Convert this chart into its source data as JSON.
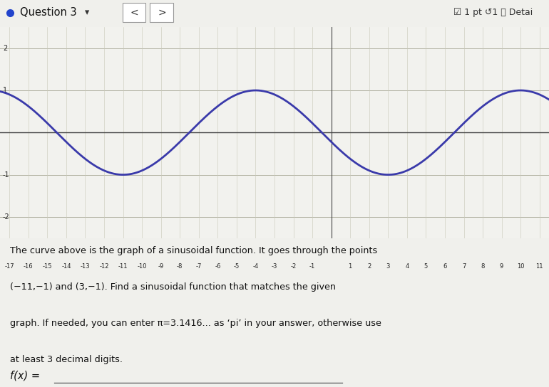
{
  "xlim": [
    -17.5,
    11.5
  ],
  "ylim": [
    -2.5,
    2.5
  ],
  "xticks": [
    -17,
    -16,
    -15,
    -14,
    -13,
    -12,
    -11,
    -10,
    -9,
    -8,
    -7,
    -6,
    -5,
    -4,
    -3,
    -2,
    -1,
    1,
    2,
    3,
    4,
    5,
    6,
    7,
    8,
    9,
    10,
    11
  ],
  "yticks_labeled": [
    -2,
    -1,
    1,
    2
  ],
  "amplitude": 1,
  "period": 14,
  "curve_color": "#3a3aaa",
  "bg_color": "#f2f2ee",
  "grid_color": "#c8c8b8",
  "grid_color_h": "#b0b0a0",
  "axis_color": "#444444",
  "header_bg": "#dcdcdc",
  "header_text": "Question 3",
  "right_header_text": "☑ 1 pt ↺1 ⓘ Detai",
  "body_text_lines": [
    "The curve above is the graph of a sinusoidal function. It goes through the points",
    "(−11,−1) and (3,−1). Find a sinusoidal function that matches the given",
    "graph. If needed, you can enter π=3.1416... as ‘pi’ in your answer, otherwise use",
    "at least 3 decimal digits."
  ],
  "fx_label": "f(x) ="
}
